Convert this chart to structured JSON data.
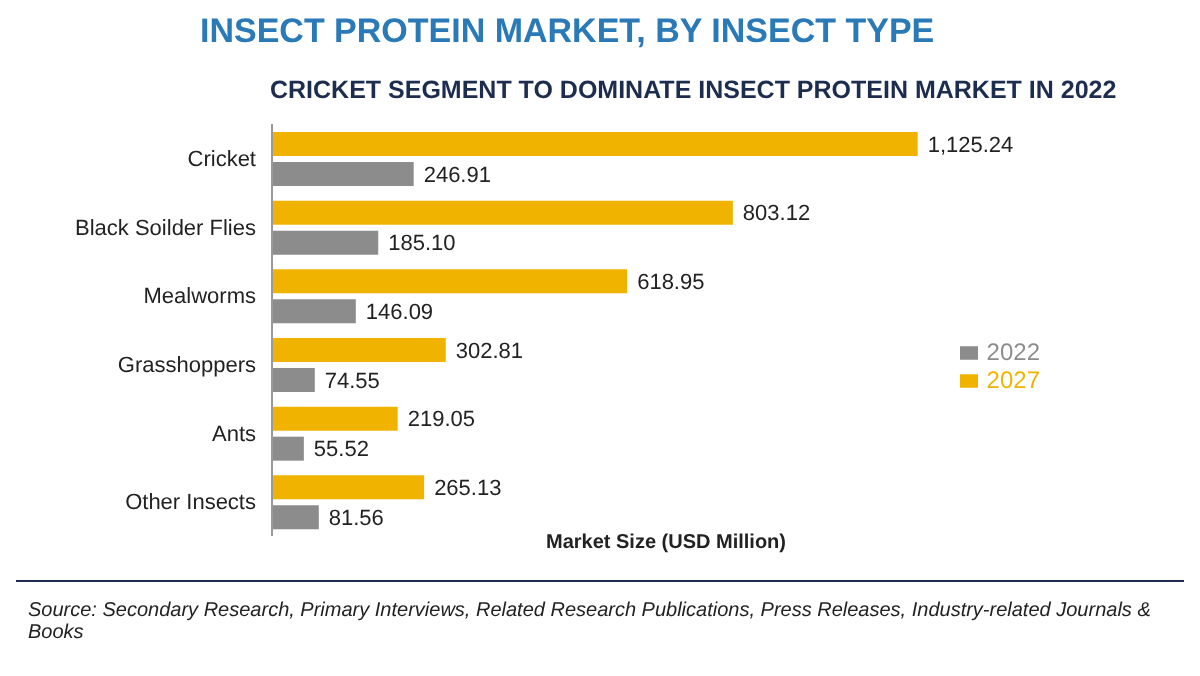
{
  "chart_data": {
    "type": "bar",
    "orientation": "horizontal",
    "title": "INSECT PROTEIN MARKET, BY INSECT TYPE",
    "subtitle": "CRICKET SEGMENT TO DOMINATE INSECT PROTEIN MARKET IN 2022",
    "xlabel": "Market Size (USD Million)",
    "categories": [
      "Cricket",
      "Black Soilder Flies",
      "Mealworms",
      "Grasshoppers",
      "Ants",
      "Other Insects"
    ],
    "series": [
      {
        "name": "2027",
        "color": "#f0b400",
        "values": [
          1125.24,
          803.12,
          618.95,
          302.81,
          219.05,
          265.13
        ],
        "value_labels": [
          "1,125.24",
          "803.12",
          "618.95",
          "302.81",
          "219.05",
          "265.13"
        ]
      },
      {
        "name": "2022",
        "color": "#8c8c8c",
        "values": [
          246.91,
          185.1,
          146.09,
          74.55,
          55.52,
          81.56
        ],
        "value_labels": [
          "246.91",
          "185.10",
          "146.09",
          "74.55",
          "55.52",
          "81.56"
        ]
      }
    ],
    "legend": "right",
    "annotations": [
      "Source: Secondary Research, Primary Interviews, Related Research Publications, Press Releases, Industry-related Journals & Books"
    ]
  }
}
